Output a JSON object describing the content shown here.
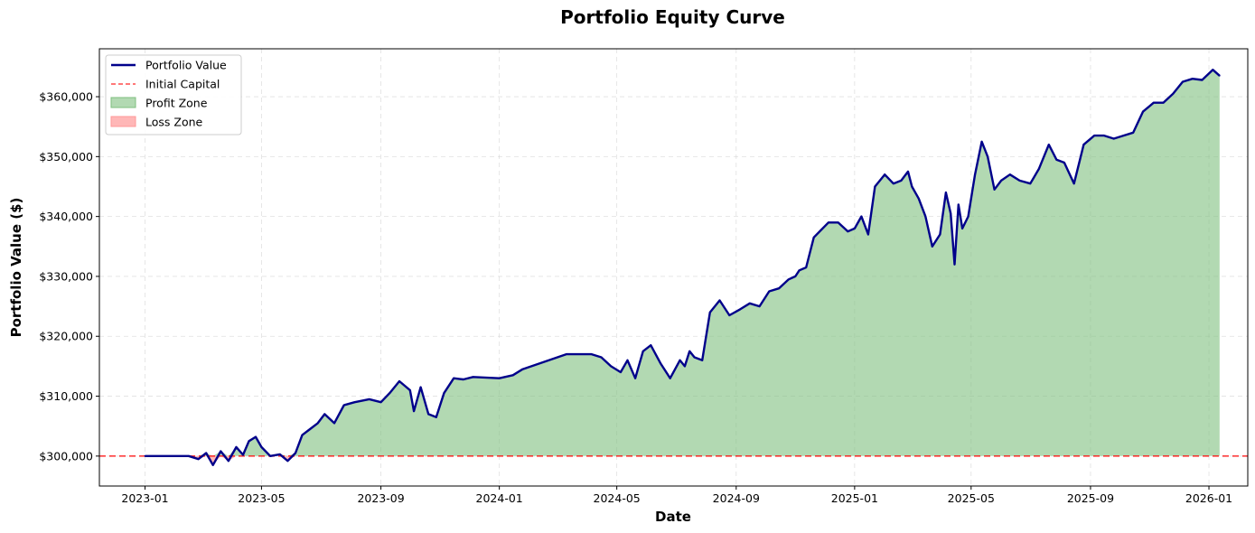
{
  "chart_data": {
    "type": "line",
    "title": "Portfolio Equity Curve",
    "xlabel": "Date",
    "ylabel": "Portfolio Value ($)",
    "x_ticks": [
      "2023-01",
      "2023-05",
      "2023-09",
      "2024-01",
      "2024-05",
      "2024-09",
      "2025-01",
      "2025-05",
      "2025-09",
      "2026-01"
    ],
    "y_ticks": [
      "$300,000",
      "$310,000",
      "$320,000",
      "$330,000",
      "$340,000",
      "$350,000",
      "$360,000"
    ],
    "y_tick_values": [
      300000,
      310000,
      320000,
      330000,
      340000,
      350000,
      360000
    ],
    "xlim": [
      "2022-11-15",
      "2026-02-10"
    ],
    "ylim": [
      295000,
      368000
    ],
    "grid": true,
    "legend_position": "top-left",
    "initial_capital": 300000,
    "legend": {
      "portfolio": "Portfolio Value",
      "initial": "Initial Capital",
      "profit": "Profit Zone",
      "loss": "Loss Zone"
    },
    "colors": {
      "portfolio": "#00008b",
      "initial": "#ff0000",
      "profit": "#7fbf7f",
      "loss": "#ff9999"
    },
    "series": [
      {
        "name": "Portfolio Value",
        "x": [
          "2023-01-01",
          "2023-02-15",
          "2023-02-25",
          "2023-03-05",
          "2023-03-12",
          "2023-03-20",
          "2023-03-28",
          "2023-04-05",
          "2023-04-12",
          "2023-04-18",
          "2023-04-25",
          "2023-05-01",
          "2023-05-10",
          "2023-05-20",
          "2023-05-28",
          "2023-06-05",
          "2023-06-12",
          "2023-06-20",
          "2023-06-28",
          "2023-07-05",
          "2023-07-15",
          "2023-07-25",
          "2023-08-05",
          "2023-08-20",
          "2023-09-01",
          "2023-09-10",
          "2023-09-20",
          "2023-10-01",
          "2023-10-05",
          "2023-10-12",
          "2023-10-20",
          "2023-10-28",
          "2023-11-05",
          "2023-11-15",
          "2023-11-25",
          "2023-12-05",
          "2024-01-01",
          "2024-01-15",
          "2024-01-25",
          "2024-03-10",
          "2024-03-20",
          "2024-04-05",
          "2024-04-15",
          "2024-04-25",
          "2024-05-05",
          "2024-05-12",
          "2024-05-20",
          "2024-05-28",
          "2024-06-05",
          "2024-06-15",
          "2024-06-25",
          "2024-07-05",
          "2024-07-10",
          "2024-07-15",
          "2024-07-20",
          "2024-07-28",
          "2024-08-05",
          "2024-08-15",
          "2024-08-25",
          "2024-09-05",
          "2024-09-15",
          "2024-09-25",
          "2024-10-05",
          "2024-10-15",
          "2024-10-25",
          "2024-11-01",
          "2024-11-05",
          "2024-11-12",
          "2024-11-20",
          "2024-12-05",
          "2024-12-15",
          "2024-12-25",
          "2025-01-01",
          "2025-01-08",
          "2025-01-15",
          "2025-01-22",
          "2025-02-01",
          "2025-02-10",
          "2025-02-18",
          "2025-02-25",
          "2025-03-01",
          "2025-03-08",
          "2025-03-15",
          "2025-03-22",
          "2025-03-30",
          "2025-04-05",
          "2025-04-10",
          "2025-04-14",
          "2025-04-18",
          "2025-04-22",
          "2025-04-28",
          "2025-05-05",
          "2025-05-12",
          "2025-05-18",
          "2025-05-25",
          "2025-06-01",
          "2025-06-10",
          "2025-06-20",
          "2025-07-01",
          "2025-07-10",
          "2025-07-20",
          "2025-07-28",
          "2025-08-05",
          "2025-08-15",
          "2025-08-25",
          "2025-09-05",
          "2025-09-15",
          "2025-09-25",
          "2025-10-05",
          "2025-10-15",
          "2025-10-25",
          "2025-11-05",
          "2025-11-15",
          "2025-11-25",
          "2025-12-05",
          "2025-12-15",
          "2025-12-25",
          "2026-01-05",
          "2026-01-12"
        ],
        "values": [
          300000,
          300000,
          299500,
          300500,
          298500,
          300800,
          299200,
          301500,
          300200,
          302500,
          303200,
          301500,
          300000,
          300300,
          299200,
          300500,
          303500,
          304500,
          305500,
          307000,
          305500,
          308500,
          309000,
          309500,
          309000,
          310500,
          312500,
          311000,
          307500,
          311500,
          307000,
          306500,
          310500,
          313000,
          312800,
          313200,
          313000,
          313500,
          314500,
          317000,
          317000,
          317000,
          316500,
          315000,
          314000,
          316000,
          313000,
          317500,
          318500,
          315500,
          313000,
          316000,
          315000,
          317500,
          316500,
          316000,
          324000,
          326000,
          323500,
          324500,
          325500,
          325000,
          327500,
          328000,
          329500,
          330000,
          331000,
          331500,
          336500,
          339000,
          339000,
          337500,
          338000,
          340000,
          337000,
          345000,
          347000,
          345500,
          346000,
          347500,
          345000,
          343000,
          340000,
          335000,
          337000,
          344000,
          340500,
          332000,
          342000,
          338000,
          340000,
          347000,
          352500,
          350000,
          344500,
          346000,
          347000,
          346000,
          345500,
          348000,
          352000,
          349500,
          349000,
          345500,
          352000,
          353500,
          353500,
          353000,
          353500,
          354000,
          357500,
          359000,
          359000,
          360500,
          362500,
          363000,
          362800,
          364500,
          363500
        ]
      }
    ]
  }
}
